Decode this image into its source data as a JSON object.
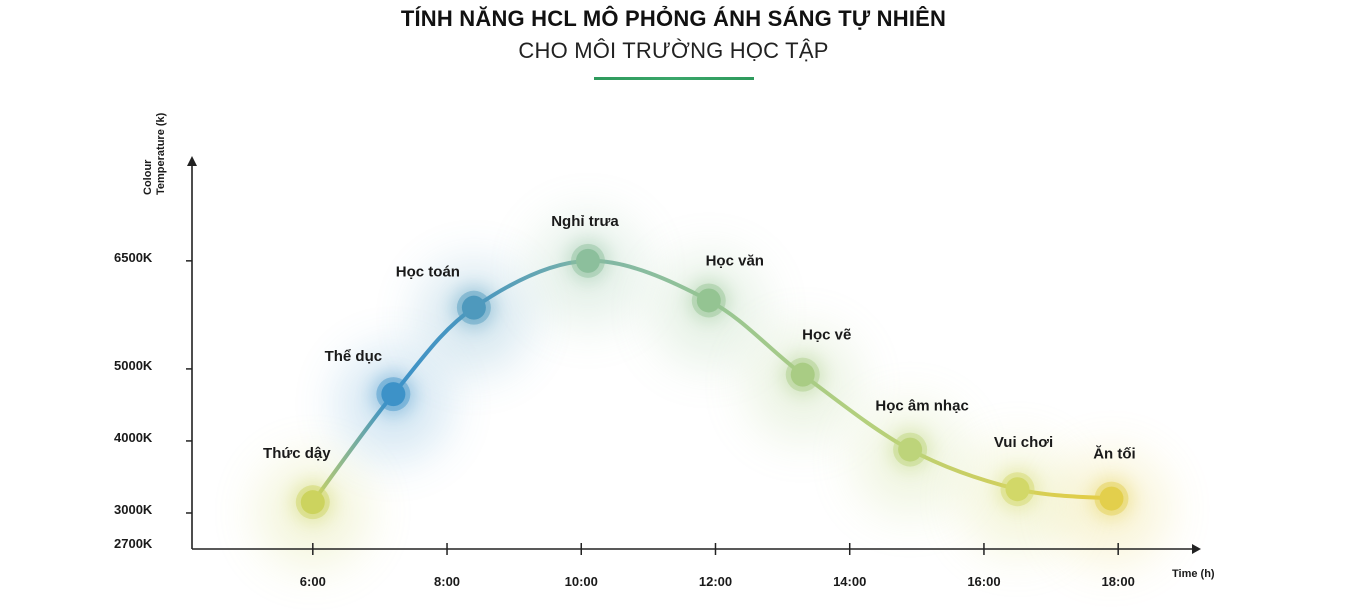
{
  "header": {
    "title": "TÍNH NĂNG HCL MÔ PHỎNG ÁNH SÁNG TỰ NHIÊN",
    "subtitle": "CHO MÔI TRƯỜNG HỌC TẬP",
    "divider_color": "#3aa66a"
  },
  "chart_data": {
    "type": "line",
    "xlabel": "Time (h)",
    "ylabel_line1": "Colour",
    "ylabel_line2": "Temperature (k)",
    "x_ticks": [
      "6:00",
      "8:00",
      "10:00",
      "12:00",
      "14:00",
      "16:00",
      "18:00"
    ],
    "x_tick_values": [
      6,
      8,
      10,
      12,
      14,
      16,
      18
    ],
    "y_ticks": [
      "2700K",
      "3000K",
      "4000K",
      "5000K",
      "6500K"
    ],
    "y_tick_values": [
      2700,
      3000,
      4000,
      5000,
      6500
    ],
    "xlim": [
      4.2,
      19.1
    ],
    "ylim": [
      2500,
      7900
    ],
    "grid": false,
    "points": [
      {
        "label": "Thức dậy",
        "x": 6.0,
        "y": 3150,
        "color": "#ccd35e"
      },
      {
        "label": "Thể dục",
        "x": 7.2,
        "y": 4650,
        "color": "#3d92c8"
      },
      {
        "label": "Học toán",
        "x": 8.4,
        "y": 5850,
        "color": "#4e99bd"
      },
      {
        "label": "Nghỉ trưa",
        "x": 10.1,
        "y": 6500,
        "color": "#8cbf9c"
      },
      {
        "label": "Học văn",
        "x": 11.9,
        "y": 5950,
        "color": "#94c492"
      },
      {
        "label": "Học vẽ",
        "x": 13.3,
        "y": 4920,
        "color": "#a9cc84"
      },
      {
        "label": "Học âm nhạc",
        "x": 14.9,
        "y": 3880,
        "color": "#bdd47a"
      },
      {
        "label": "Vui chơi",
        "x": 16.5,
        "y": 3330,
        "color": "#d2d868"
      },
      {
        "label": "Ăn tối",
        "x": 17.9,
        "y": 3200,
        "color": "#e3cf4c"
      }
    ]
  }
}
